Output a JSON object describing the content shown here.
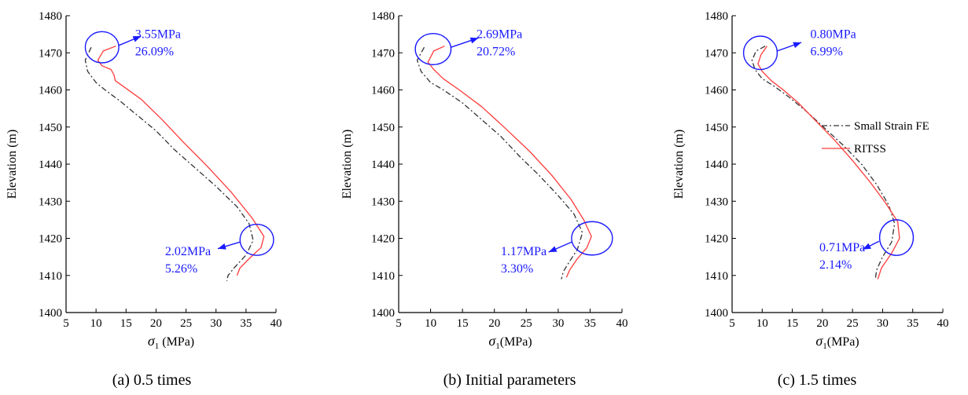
{
  "colors": {
    "small_strain": "#333333",
    "ritss": "#ff3b3b",
    "annotation": "#1a1aff",
    "axis": "#000000"
  },
  "chart_data": [
    {
      "type": "line",
      "caption": "(a) 0.5 times",
      "xlabel_symbol": "σ",
      "xlabel_sub": "1",
      "xlabel_unit": " (MPa)",
      "ylabel": "Elevation (m)",
      "xlim": [
        5,
        40
      ],
      "ylim": [
        1400,
        1480
      ],
      "xticks": [
        5,
        10,
        15,
        20,
        25,
        30,
        35,
        40
      ],
      "yticks": [
        1400,
        1410,
        1420,
        1430,
        1440,
        1450,
        1460,
        1470,
        1480
      ],
      "legend": null,
      "series": [
        {
          "key": "small_strain",
          "style": "dashdot",
          "x": [
            9.2,
            8.2,
            8.6,
            10.0,
            11.5,
            14.0,
            17.0,
            20.0,
            23.0,
            26.5,
            30.0,
            33.5,
            35.5,
            36.2,
            35.0,
            33.0,
            32.0,
            31.8
          ],
          "y": [
            1471.5,
            1468.0,
            1465.0,
            1462.0,
            1460.0,
            1457.0,
            1453.0,
            1449.0,
            1444.0,
            1439.0,
            1434.0,
            1428.5,
            1424.0,
            1419.5,
            1415.5,
            1412.0,
            1410.0,
            1408.5
          ]
        },
        {
          "key": "ritss",
          "style": "solid",
          "x": [
            13.3,
            11.2,
            10.3,
            11.0,
            12.5,
            13.0,
            13.2,
            14.5,
            17.5,
            21.0,
            24.5,
            28.5,
            32.5,
            36.0,
            38.0,
            37.5,
            35.5,
            34.0,
            33.5
          ],
          "y": [
            1471.8,
            1470.5,
            1468.0,
            1466.5,
            1465.5,
            1464.0,
            1462.5,
            1461.0,
            1457.5,
            1452.0,
            1446.0,
            1439.5,
            1432.5,
            1425.5,
            1420.5,
            1417.5,
            1414.5,
            1412.0,
            1410.0
          ]
        }
      ],
      "annotations": [
        {
          "lines": [
            "3.55MPa",
            "26.09%"
          ],
          "circle": {
            "cx": 11.0,
            "cy": 1471.5,
            "rx": 2.8,
            "ry": 4.2
          },
          "arrow_from": {
            "x": 13.8,
            "y": 1472.0
          },
          "arrow_to": {
            "x": 17.5,
            "y": 1474.5
          },
          "text_pos": {
            "x": 16.5,
            "y": 1474.0
          }
        },
        {
          "lines": [
            "2.02MPa",
            "5.26%"
          ],
          "circle": {
            "cx": 36.8,
            "cy": 1419.6,
            "rx": 2.8,
            "ry": 4.2
          },
          "arrow_from": {
            "x": 34.0,
            "y": 1419.0
          },
          "arrow_to": {
            "x": 30.3,
            "y": 1417.2
          },
          "text_pos": {
            "x": 21.5,
            "y": 1415.5
          }
        }
      ]
    },
    {
      "type": "line",
      "caption": "(b) Initial parameters",
      "xlabel_symbol": "σ",
      "xlabel_sub": "1",
      "xlabel_unit": "(MPa)",
      "ylabel": "Elevation (m)",
      "xlim": [
        5,
        40
      ],
      "ylim": [
        1400,
        1480
      ],
      "xticks": [
        5,
        10,
        15,
        20,
        25,
        30,
        35,
        40
      ],
      "yticks": [
        1400,
        1410,
        1420,
        1430,
        1440,
        1450,
        1460,
        1470,
        1480
      ],
      "legend": null,
      "series": [
        {
          "key": "small_strain",
          "style": "dashdot",
          "x": [
            9.0,
            7.9,
            8.5,
            10.0,
            12.0,
            15.0,
            18.0,
            21.0,
            24.0,
            27.0,
            30.0,
            32.5,
            33.8,
            33.0,
            31.5,
            30.8,
            30.5
          ],
          "y": [
            1471.5,
            1468.0,
            1465.0,
            1462.0,
            1460.0,
            1456.5,
            1452.0,
            1447.5,
            1442.0,
            1437.0,
            1431.5,
            1426.5,
            1421.5,
            1417.0,
            1413.0,
            1411.0,
            1409.0
          ]
        },
        {
          "key": "ritss",
          "style": "solid",
          "x": [
            12.2,
            10.5,
            9.6,
            10.5,
            12.0,
            14.5,
            18.0,
            21.5,
            25.5,
            29.0,
            32.0,
            34.0,
            35.2,
            34.5,
            33.0,
            31.8,
            31.3
          ],
          "y": [
            1471.8,
            1470.5,
            1467.5,
            1465.5,
            1463.0,
            1460.0,
            1455.5,
            1450.0,
            1443.5,
            1437.0,
            1430.5,
            1425.0,
            1420.5,
            1417.5,
            1414.5,
            1411.5,
            1409.5
          ]
        }
      ],
      "annotations": [
        {
          "lines": [
            "2.69MPa",
            "20.72%"
          ],
          "circle": {
            "cx": 10.4,
            "cy": 1471.0,
            "rx": 2.8,
            "ry": 4.2
          },
          "arrow_from": {
            "x": 13.2,
            "y": 1471.5
          },
          "arrow_to": {
            "x": 17.5,
            "y": 1474.0
          },
          "text_pos": {
            "x": 17.2,
            "y": 1474.0
          }
        },
        {
          "lines": [
            "1.17MPa",
            "3.30%"
          ],
          "circle": {
            "cx": 35.3,
            "cy": 1420.0,
            "rx": 3.2,
            "ry": 4.5
          },
          "arrow_from": {
            "x": 32.1,
            "y": 1419.0
          },
          "arrow_to": {
            "x": 28.5,
            "y": 1416.3
          },
          "text_pos": {
            "x": 21.0,
            "y": 1415.5
          }
        }
      ]
    },
    {
      "type": "line",
      "caption": "(c) 1.5 times",
      "xlabel_symbol": "σ",
      "xlabel_sub": "1",
      "xlabel_unit": "(MPa)",
      "ylabel": "Elevation (m)",
      "xlim": [
        5,
        40
      ],
      "ylim": [
        1400,
        1480
      ],
      "xticks": [
        5,
        10,
        15,
        20,
        25,
        30,
        35,
        40
      ],
      "yticks": [
        1400,
        1410,
        1420,
        1430,
        1440,
        1450,
        1460,
        1470,
        1480
      ],
      "legend": {
        "entries": [
          {
            "key": "small_strain",
            "label": "Small Strain FE",
            "style": "dashdot"
          },
          {
            "key": "ritss",
            "label": "RITSS",
            "style": "solid"
          }
        ],
        "position": "upper-right"
      },
      "series": [
        {
          "key": "small_strain",
          "style": "dashdot",
          "x": [
            10.5,
            9.0,
            8.3,
            8.8,
            10.0,
            12.0,
            14.5,
            17.5,
            20.5,
            23.5,
            26.5,
            29.0,
            31.0,
            32.0,
            31.5,
            30.0,
            29.0,
            28.8
          ],
          "y": [
            1471.8,
            1470.5,
            1468.0,
            1465.5,
            1463.0,
            1461.0,
            1458.0,
            1454.0,
            1449.5,
            1445.0,
            1440.0,
            1434.5,
            1429.0,
            1424.0,
            1419.0,
            1415.0,
            1411.5,
            1409.0
          ]
        },
        {
          "key": "ritss",
          "style": "solid",
          "x": [
            10.8,
            9.8,
            9.3,
            10.0,
            11.5,
            13.5,
            16.0,
            19.0,
            22.0,
            25.0,
            28.0,
            30.5,
            32.5,
            32.8,
            31.5,
            29.8,
            29.2
          ],
          "y": [
            1471.8,
            1469.5,
            1467.0,
            1465.0,
            1462.5,
            1460.0,
            1456.5,
            1451.5,
            1446.5,
            1441.0,
            1435.0,
            1429.5,
            1424.5,
            1420.0,
            1416.0,
            1412.0,
            1409.0
          ]
        }
      ],
      "annotations": [
        {
          "lines": [
            "0.80MPa",
            "6.99%"
          ],
          "circle": {
            "cx": 9.7,
            "cy": 1470.0,
            "rx": 2.8,
            "ry": 4.5
          },
          "arrow_from": {
            "x": 12.5,
            "y": 1470.5
          },
          "arrow_to": {
            "x": 16.5,
            "y": 1472.8
          },
          "text_pos": {
            "x": 18.0,
            "y": 1474.0
          }
        },
        {
          "lines": [
            "0.71MPa",
            "2.14%"
          ],
          "circle": {
            "cx": 32.3,
            "cy": 1420.2,
            "rx": 2.8,
            "ry": 4.8
          },
          "arrow_from": {
            "x": 29.4,
            "y": 1419.2
          },
          "arrow_to": {
            "x": 26.7,
            "y": 1417.0
          },
          "text_pos": {
            "x": 19.5,
            "y": 1416.5
          }
        }
      ]
    }
  ]
}
